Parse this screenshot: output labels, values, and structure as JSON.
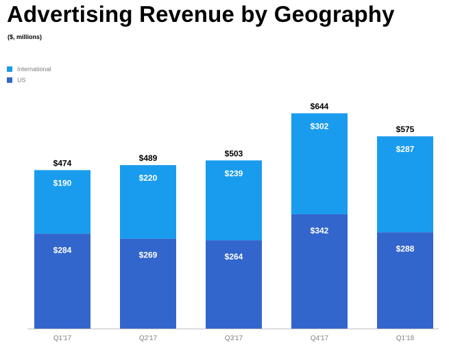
{
  "chart_data": {
    "type": "bar",
    "stacked": true,
    "title": "Advertising Revenue by Geography",
    "subtitle": "($, millions)",
    "categories": [
      "Q1'17",
      "Q2'17",
      "Q3'17",
      "Q4'17",
      "Q1'18"
    ],
    "series": [
      {
        "name": "US",
        "values": [
          284,
          269,
          264,
          342,
          288
        ],
        "labels": [
          "$284",
          "$269",
          "$264",
          "$342",
          "$288"
        ],
        "color": "#3366cc"
      },
      {
        "name": "International",
        "values": [
          190,
          220,
          239,
          302,
          287
        ],
        "labels": [
          "$190",
          "$220",
          "$239",
          "$302",
          "$287"
        ],
        "color": "#1a9cee"
      }
    ],
    "totals": [
      474,
      489,
      503,
      644,
      575
    ],
    "total_labels": [
      "$474",
      "$489",
      "$503",
      "$644",
      "$575"
    ],
    "legend": [
      "International",
      "US"
    ],
    "legend_position": "top-left",
    "ylim": [
      0,
      720
    ],
    "grid": false
  }
}
